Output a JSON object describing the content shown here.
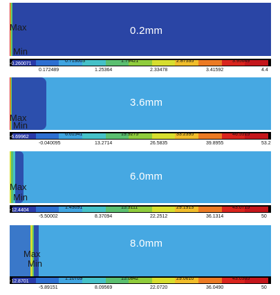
{
  "panels": [
    {
      "thickness": "0.2mm",
      "max_label": "Max",
      "min_label": "Min",
      "scale_upper": [
        "-0.260071",
        "0.713003",
        "1.79421",
        "2.87535",
        "3.95649"
      ],
      "scale_lower": [
        "0.172489",
        "1.25364",
        "2.33478",
        "3.41592",
        "4.4"
      ]
    },
    {
      "thickness": "3.6mm",
      "max_label": "Max",
      "min_label": "Min",
      "scale_upper": [
        "-6.69962",
        "6.61541",
        "19.9275",
        "33.2395",
        "46.5515"
      ],
      "scale_lower": [
        "-0.040095",
        "13.2714",
        "26.5835",
        "39.8955",
        "53.2"
      ]
    },
    {
      "thickness": "6.0mm",
      "max_label": "Max",
      "min_label": "Min",
      "scale_upper": [
        "-12.4404",
        "1.43091",
        "15.3111",
        "29.1913",
        "43.0715"
      ],
      "scale_lower": [
        "-5.50002",
        "8.37094",
        "22.2512",
        "36.1314",
        "50"
      ]
    },
    {
      "thickness": "8.0mm",
      "max_label": "Max",
      "min_label": "Min",
      "scale_upper": [
        "-12.8701",
        "1.10709",
        "15.0842",
        "29.0610",
        "43.0365"
      ],
      "scale_lower": [
        "-5.89151",
        "8.09569",
        "22.0720",
        "36.0490",
        "50"
      ]
    }
  ],
  "colormap": [
    "#2a3aa8",
    "#2d6fd1",
    "#3fa4e0",
    "#45c1c8",
    "#5bbf70",
    "#8fcc3c",
    "#d7de2e",
    "#f0bd2a",
    "#ec7a23",
    "#d9241d",
    "#c4161b"
  ]
}
